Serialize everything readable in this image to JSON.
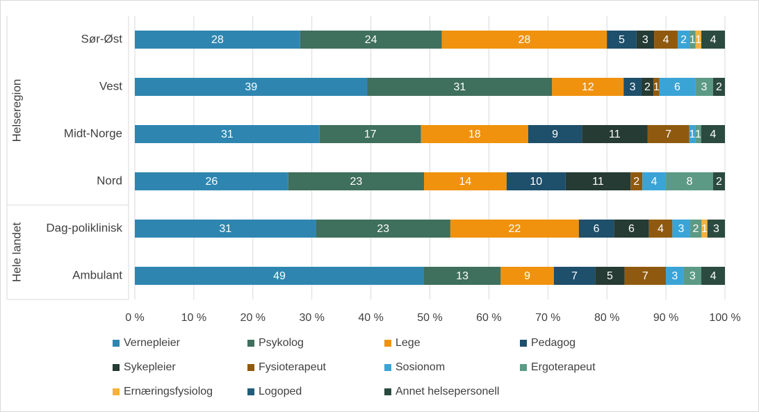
{
  "chart_data": {
    "type": "bar",
    "orientation": "horizontal",
    "stacked": "percent",
    "categories": [
      "Sør-Øst",
      "Vest",
      "Midt-Norge",
      "Nord",
      "Dag-poliklinisk",
      "Ambulant"
    ],
    "groups": [
      {
        "label": "Helseregion",
        "categories": [
          "Sør-Øst",
          "Vest",
          "Midt-Norge",
          "Nord"
        ]
      },
      {
        "label": "Hele landet",
        "categories": [
          "Dag-poliklinisk",
          "Ambulant"
        ]
      }
    ],
    "series": [
      {
        "name": "Vernepleier",
        "color": "#2e86b0",
        "values": [
          28,
          39,
          31,
          26,
          31,
          49
        ]
      },
      {
        "name": "Psykolog",
        "color": "#3f6f5d",
        "values": [
          24,
          31,
          17,
          23,
          23,
          13
        ]
      },
      {
        "name": "Lege",
        "color": "#f0920e",
        "values": [
          28,
          12,
          18,
          14,
          22,
          9
        ]
      },
      {
        "name": "Pedagog",
        "color": "#1e4f6b",
        "values": [
          5,
          3,
          9,
          10,
          6,
          7
        ]
      },
      {
        "name": "Sykepleier",
        "color": "#253b34",
        "values": [
          3,
          2,
          11,
          11,
          6,
          5
        ]
      },
      {
        "name": "Fysioterapeut",
        "color": "#8f5a0f",
        "values": [
          4,
          1,
          7,
          2,
          4,
          7
        ]
      },
      {
        "name": "Sosionom",
        "color": "#3ba4d6",
        "values": [
          2,
          6,
          1,
          4,
          3,
          3
        ]
      },
      {
        "name": "Ergoterapeut",
        "color": "#5c9a85",
        "values": [
          1,
          3,
          1,
          8,
          2,
          3
        ]
      },
      {
        "name": "Ernæringsfysiolog",
        "color": "#f5b13c",
        "values": [
          1,
          0,
          0,
          0,
          1,
          0
        ]
      },
      {
        "name": "Logoped",
        "color": "#215c78",
        "values": [
          0,
          0,
          0,
          0,
          0,
          0
        ]
      },
      {
        "name": "Annet helsepersonell",
        "color": "#2b4a40",
        "values": [
          4,
          2,
          4,
          2,
          3,
          4
        ]
      }
    ],
    "xlim": [
      0,
      100
    ],
    "xticks": [
      "0 %",
      "10 %",
      "20 %",
      "30 %",
      "40 %",
      "50 %",
      "60 %",
      "70 %",
      "80 %",
      "90 %",
      "100 %"
    ],
    "title": "",
    "xlabel": "",
    "ylabel": "",
    "grid": true,
    "legend": "bottom"
  }
}
